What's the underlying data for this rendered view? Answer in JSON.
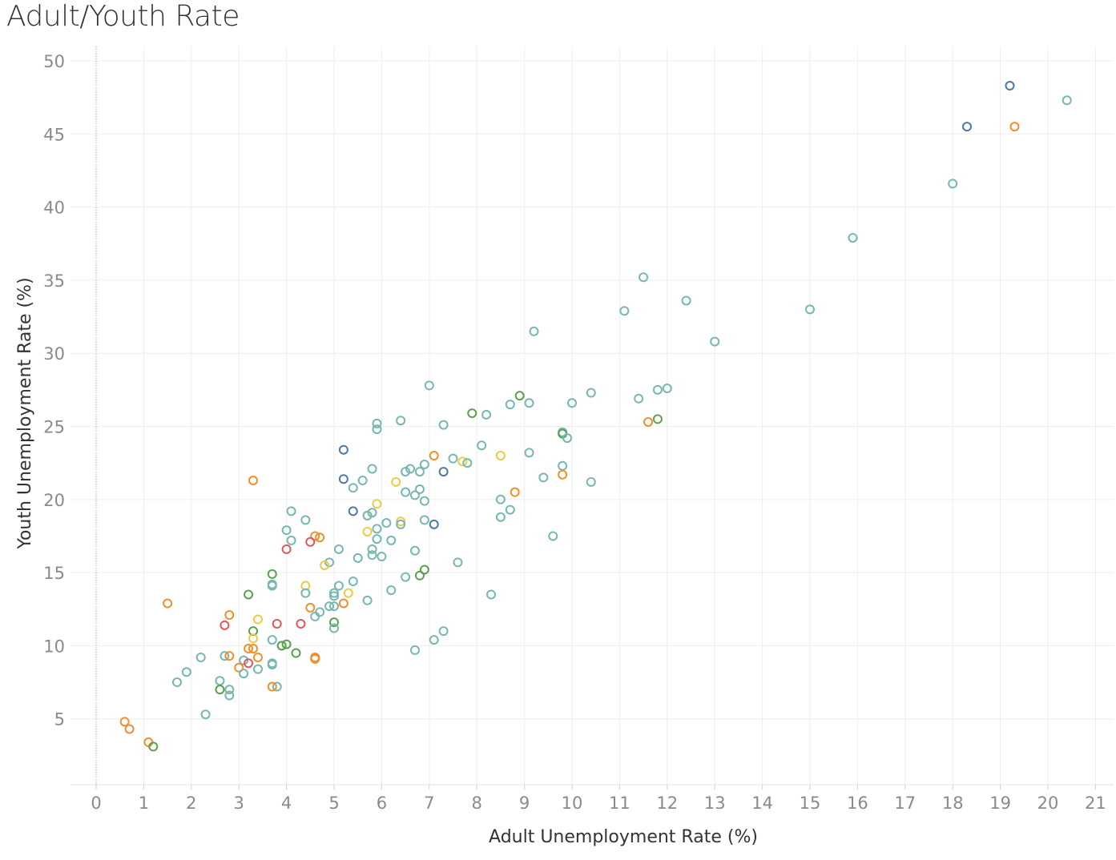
{
  "title": "Adult/Youth Rate",
  "chart_data": {
    "type": "scatter",
    "title": "Adult/Youth Rate",
    "xlabel": "Adult Unemployment Rate (%)",
    "ylabel": "Youth Unemployment Rate (%)",
    "xlim": [
      -0.5,
      21.3
    ],
    "ylim": [
      0,
      51.5
    ],
    "x_ticks": [
      0,
      1,
      2,
      3,
      4,
      5,
      6,
      7,
      8,
      9,
      10,
      11,
      12,
      13,
      14,
      15,
      16,
      17,
      18,
      19,
      20,
      21
    ],
    "y_ticks": [
      5,
      10,
      15,
      20,
      25,
      30,
      35,
      40,
      45,
      50
    ],
    "grid": true,
    "marker": "hollow-circle",
    "colors": {
      "teal": "#76b7b2",
      "orange": "#f28e2b",
      "green": "#59a14f",
      "blue": "#4e79a7",
      "red": "#e15759",
      "yellow": "#edc948"
    },
    "points": [
      {
        "x": 19.2,
        "y": 48.3,
        "c": "blue"
      },
      {
        "x": 20.4,
        "y": 47.3,
        "c": "teal"
      },
      {
        "x": 18.3,
        "y": 45.5,
        "c": "blue"
      },
      {
        "x": 19.3,
        "y": 45.5,
        "c": "orange"
      },
      {
        "x": 18.0,
        "y": 41.6,
        "c": "teal"
      },
      {
        "x": 15.9,
        "y": 37.9,
        "c": "teal"
      },
      {
        "x": 11.5,
        "y": 35.2,
        "c": "teal"
      },
      {
        "x": 12.4,
        "y": 33.6,
        "c": "teal"
      },
      {
        "x": 15.0,
        "y": 33.0,
        "c": "teal"
      },
      {
        "x": 11.1,
        "y": 32.9,
        "c": "teal"
      },
      {
        "x": 9.2,
        "y": 31.5,
        "c": "teal"
      },
      {
        "x": 13.0,
        "y": 30.8,
        "c": "teal"
      },
      {
        "x": 7.0,
        "y": 27.8,
        "c": "teal"
      },
      {
        "x": 12.0,
        "y": 27.6,
        "c": "teal"
      },
      {
        "x": 11.8,
        "y": 27.5,
        "c": "teal"
      },
      {
        "x": 10.4,
        "y": 27.3,
        "c": "teal"
      },
      {
        "x": 8.9,
        "y": 27.1,
        "c": "green"
      },
      {
        "x": 11.4,
        "y": 26.9,
        "c": "teal"
      },
      {
        "x": 10.0,
        "y": 26.6,
        "c": "teal"
      },
      {
        "x": 9.1,
        "y": 26.6,
        "c": "teal"
      },
      {
        "x": 8.7,
        "y": 26.5,
        "c": "teal"
      },
      {
        "x": 7.9,
        "y": 25.9,
        "c": "green"
      },
      {
        "x": 8.2,
        "y": 25.8,
        "c": "teal"
      },
      {
        "x": 11.8,
        "y": 25.5,
        "c": "green"
      },
      {
        "x": 6.4,
        "y": 25.4,
        "c": "teal"
      },
      {
        "x": 11.6,
        "y": 25.3,
        "c": "orange"
      },
      {
        "x": 5.9,
        "y": 25.2,
        "c": "teal"
      },
      {
        "x": 7.3,
        "y": 25.1,
        "c": "teal"
      },
      {
        "x": 5.9,
        "y": 24.8,
        "c": "teal"
      },
      {
        "x": 9.8,
        "y": 24.6,
        "c": "teal"
      },
      {
        "x": 9.8,
        "y": 24.5,
        "c": "green"
      },
      {
        "x": 9.9,
        "y": 24.2,
        "c": "teal"
      },
      {
        "x": 8.1,
        "y": 23.7,
        "c": "teal"
      },
      {
        "x": 5.2,
        "y": 23.4,
        "c": "blue"
      },
      {
        "x": 9.1,
        "y": 23.2,
        "c": "teal"
      },
      {
        "x": 7.1,
        "y": 23.0,
        "c": "orange"
      },
      {
        "x": 8.5,
        "y": 23.0,
        "c": "yellow"
      },
      {
        "x": 7.5,
        "y": 22.8,
        "c": "teal"
      },
      {
        "x": 7.7,
        "y": 22.6,
        "c": "yellow"
      },
      {
        "x": 7.8,
        "y": 22.5,
        "c": "teal"
      },
      {
        "x": 6.9,
        "y": 22.4,
        "c": "teal"
      },
      {
        "x": 9.8,
        "y": 22.3,
        "c": "teal"
      },
      {
        "x": 6.6,
        "y": 22.1,
        "c": "teal"
      },
      {
        "x": 5.8,
        "y": 22.1,
        "c": "teal"
      },
      {
        "x": 6.5,
        "y": 21.9,
        "c": "teal"
      },
      {
        "x": 6.8,
        "y": 21.9,
        "c": "teal"
      },
      {
        "x": 7.3,
        "y": 21.9,
        "c": "blue"
      },
      {
        "x": 9.8,
        "y": 21.7,
        "c": "orange"
      },
      {
        "x": 9.4,
        "y": 21.5,
        "c": "teal"
      },
      {
        "x": 5.2,
        "y": 21.4,
        "c": "blue"
      },
      {
        "x": 3.3,
        "y": 21.3,
        "c": "orange"
      },
      {
        "x": 5.6,
        "y": 21.3,
        "c": "teal"
      },
      {
        "x": 6.3,
        "y": 21.2,
        "c": "yellow"
      },
      {
        "x": 10.4,
        "y": 21.2,
        "c": "teal"
      },
      {
        "x": 5.4,
        "y": 20.8,
        "c": "teal"
      },
      {
        "x": 6.8,
        "y": 20.7,
        "c": "teal"
      },
      {
        "x": 6.5,
        "y": 20.5,
        "c": "teal"
      },
      {
        "x": 8.8,
        "y": 20.5,
        "c": "orange"
      },
      {
        "x": 6.7,
        "y": 20.3,
        "c": "teal"
      },
      {
        "x": 8.5,
        "y": 20.0,
        "c": "teal"
      },
      {
        "x": 6.9,
        "y": 19.9,
        "c": "teal"
      },
      {
        "x": 5.9,
        "y": 19.7,
        "c": "yellow"
      },
      {
        "x": 8.7,
        "y": 19.3,
        "c": "teal"
      },
      {
        "x": 4.1,
        "y": 19.2,
        "c": "teal"
      },
      {
        "x": 5.4,
        "y": 19.2,
        "c": "blue"
      },
      {
        "x": 5.8,
        "y": 19.1,
        "c": "teal"
      },
      {
        "x": 5.7,
        "y": 18.9,
        "c": "yellow"
      },
      {
        "x": 5.7,
        "y": 18.9,
        "c": "teal"
      },
      {
        "x": 8.5,
        "y": 18.8,
        "c": "teal"
      },
      {
        "x": 4.4,
        "y": 18.6,
        "c": "teal"
      },
      {
        "x": 6.9,
        "y": 18.6,
        "c": "teal"
      },
      {
        "x": 6.4,
        "y": 18.5,
        "c": "yellow"
      },
      {
        "x": 6.1,
        "y": 18.4,
        "c": "teal"
      },
      {
        "x": 6.4,
        "y": 18.3,
        "c": "teal"
      },
      {
        "x": 7.1,
        "y": 18.3,
        "c": "blue"
      },
      {
        "x": 5.9,
        "y": 18.0,
        "c": "teal"
      },
      {
        "x": 4.0,
        "y": 17.9,
        "c": "teal"
      },
      {
        "x": 5.7,
        "y": 17.8,
        "c": "yellow"
      },
      {
        "x": 9.6,
        "y": 17.5,
        "c": "teal"
      },
      {
        "x": 4.6,
        "y": 17.5,
        "c": "orange"
      },
      {
        "x": 4.7,
        "y": 17.4,
        "c": "orange"
      },
      {
        "x": 5.9,
        "y": 17.3,
        "c": "teal"
      },
      {
        "x": 4.1,
        "y": 17.2,
        "c": "teal"
      },
      {
        "x": 6.2,
        "y": 17.2,
        "c": "teal"
      },
      {
        "x": 4.5,
        "y": 17.1,
        "c": "red"
      },
      {
        "x": 4.0,
        "y": 16.6,
        "c": "red"
      },
      {
        "x": 5.1,
        "y": 16.6,
        "c": "teal"
      },
      {
        "x": 5.8,
        "y": 16.6,
        "c": "teal"
      },
      {
        "x": 6.7,
        "y": 16.5,
        "c": "teal"
      },
      {
        "x": 5.8,
        "y": 16.2,
        "c": "teal"
      },
      {
        "x": 6.0,
        "y": 16.1,
        "c": "teal"
      },
      {
        "x": 5.5,
        "y": 16.0,
        "c": "teal"
      },
      {
        "x": 7.6,
        "y": 15.7,
        "c": "teal"
      },
      {
        "x": 4.9,
        "y": 15.7,
        "c": "teal"
      },
      {
        "x": 4.8,
        "y": 15.5,
        "c": "yellow"
      },
      {
        "x": 6.9,
        "y": 15.2,
        "c": "green"
      },
      {
        "x": 3.7,
        "y": 14.9,
        "c": "green"
      },
      {
        "x": 6.8,
        "y": 14.8,
        "c": "green"
      },
      {
        "x": 6.5,
        "y": 14.7,
        "c": "teal"
      },
      {
        "x": 5.4,
        "y": 14.4,
        "c": "teal"
      },
      {
        "x": 3.7,
        "y": 14.2,
        "c": "teal"
      },
      {
        "x": 3.7,
        "y": 14.1,
        "c": "teal"
      },
      {
        "x": 4.4,
        "y": 14.1,
        "c": "yellow"
      },
      {
        "x": 5.1,
        "y": 14.1,
        "c": "teal"
      },
      {
        "x": 6.2,
        "y": 13.8,
        "c": "teal"
      },
      {
        "x": 5.0,
        "y": 13.6,
        "c": "teal"
      },
      {
        "x": 4.4,
        "y": 13.6,
        "c": "teal"
      },
      {
        "x": 5.3,
        "y": 13.6,
        "c": "yellow"
      },
      {
        "x": 3.2,
        "y": 13.5,
        "c": "green"
      },
      {
        "x": 8.3,
        "y": 13.5,
        "c": "teal"
      },
      {
        "x": 5.0,
        "y": 13.4,
        "c": "teal"
      },
      {
        "x": 5.7,
        "y": 13.1,
        "c": "teal"
      },
      {
        "x": 1.5,
        "y": 12.9,
        "c": "orange"
      },
      {
        "x": 5.2,
        "y": 12.9,
        "c": "orange"
      },
      {
        "x": 4.9,
        "y": 12.7,
        "c": "teal"
      },
      {
        "x": 5.0,
        "y": 12.7,
        "c": "teal"
      },
      {
        "x": 4.5,
        "y": 12.6,
        "c": "orange"
      },
      {
        "x": 4.7,
        "y": 12.3,
        "c": "teal"
      },
      {
        "x": 2.8,
        "y": 12.1,
        "c": "orange"
      },
      {
        "x": 4.6,
        "y": 12.0,
        "c": "teal"
      },
      {
        "x": 3.4,
        "y": 11.8,
        "c": "yellow"
      },
      {
        "x": 5.0,
        "y": 11.6,
        "c": "green"
      },
      {
        "x": 3.8,
        "y": 11.5,
        "c": "red"
      },
      {
        "x": 4.3,
        "y": 11.5,
        "c": "red"
      },
      {
        "x": 2.7,
        "y": 11.4,
        "c": "red"
      },
      {
        "x": 5.0,
        "y": 11.2,
        "c": "teal"
      },
      {
        "x": 3.3,
        "y": 11.0,
        "c": "green"
      },
      {
        "x": 7.3,
        "y": 11.0,
        "c": "teal"
      },
      {
        "x": 3.3,
        "y": 10.5,
        "c": "yellow"
      },
      {
        "x": 3.7,
        "y": 10.4,
        "c": "teal"
      },
      {
        "x": 7.1,
        "y": 10.4,
        "c": "teal"
      },
      {
        "x": 3.9,
        "y": 10.0,
        "c": "teal"
      },
      {
        "x": 3.9,
        "y": 10.0,
        "c": "green"
      },
      {
        "x": 4.0,
        "y": 10.1,
        "c": "green"
      },
      {
        "x": 3.2,
        "y": 9.8,
        "c": "orange"
      },
      {
        "x": 3.3,
        "y": 9.8,
        "c": "orange"
      },
      {
        "x": 6.7,
        "y": 9.7,
        "c": "teal"
      },
      {
        "x": 4.2,
        "y": 9.5,
        "c": "green"
      },
      {
        "x": 2.7,
        "y": 9.3,
        "c": "teal"
      },
      {
        "x": 2.8,
        "y": 9.3,
        "c": "orange"
      },
      {
        "x": 2.2,
        "y": 9.2,
        "c": "teal"
      },
      {
        "x": 3.4,
        "y": 9.2,
        "c": "orange"
      },
      {
        "x": 4.6,
        "y": 9.2,
        "c": "orange"
      },
      {
        "x": 4.6,
        "y": 9.1,
        "c": "orange"
      },
      {
        "x": 3.1,
        "y": 9.0,
        "c": "teal"
      },
      {
        "x": 3.7,
        "y": 8.8,
        "c": "teal"
      },
      {
        "x": 3.2,
        "y": 8.8,
        "c": "red"
      },
      {
        "x": 3.7,
        "y": 8.7,
        "c": "teal"
      },
      {
        "x": 3.0,
        "y": 8.5,
        "c": "orange"
      },
      {
        "x": 3.4,
        "y": 8.4,
        "c": "teal"
      },
      {
        "x": 1.9,
        "y": 8.2,
        "c": "teal"
      },
      {
        "x": 3.1,
        "y": 8.1,
        "c": "teal"
      },
      {
        "x": 1.7,
        "y": 7.5,
        "c": "teal"
      },
      {
        "x": 2.6,
        "y": 7.6,
        "c": "teal"
      },
      {
        "x": 3.8,
        "y": 7.2,
        "c": "teal"
      },
      {
        "x": 3.7,
        "y": 7.2,
        "c": "orange"
      },
      {
        "x": 2.6,
        "y": 7.0,
        "c": "green"
      },
      {
        "x": 2.8,
        "y": 7.0,
        "c": "teal"
      },
      {
        "x": 2.8,
        "y": 6.6,
        "c": "teal"
      },
      {
        "x": 2.3,
        "y": 5.3,
        "c": "teal"
      },
      {
        "x": 0.6,
        "y": 4.8,
        "c": "orange"
      },
      {
        "x": 0.7,
        "y": 4.3,
        "c": "orange"
      },
      {
        "x": 1.1,
        "y": 3.4,
        "c": "orange"
      },
      {
        "x": 1.2,
        "y": 3.1,
        "c": "green"
      }
    ]
  }
}
